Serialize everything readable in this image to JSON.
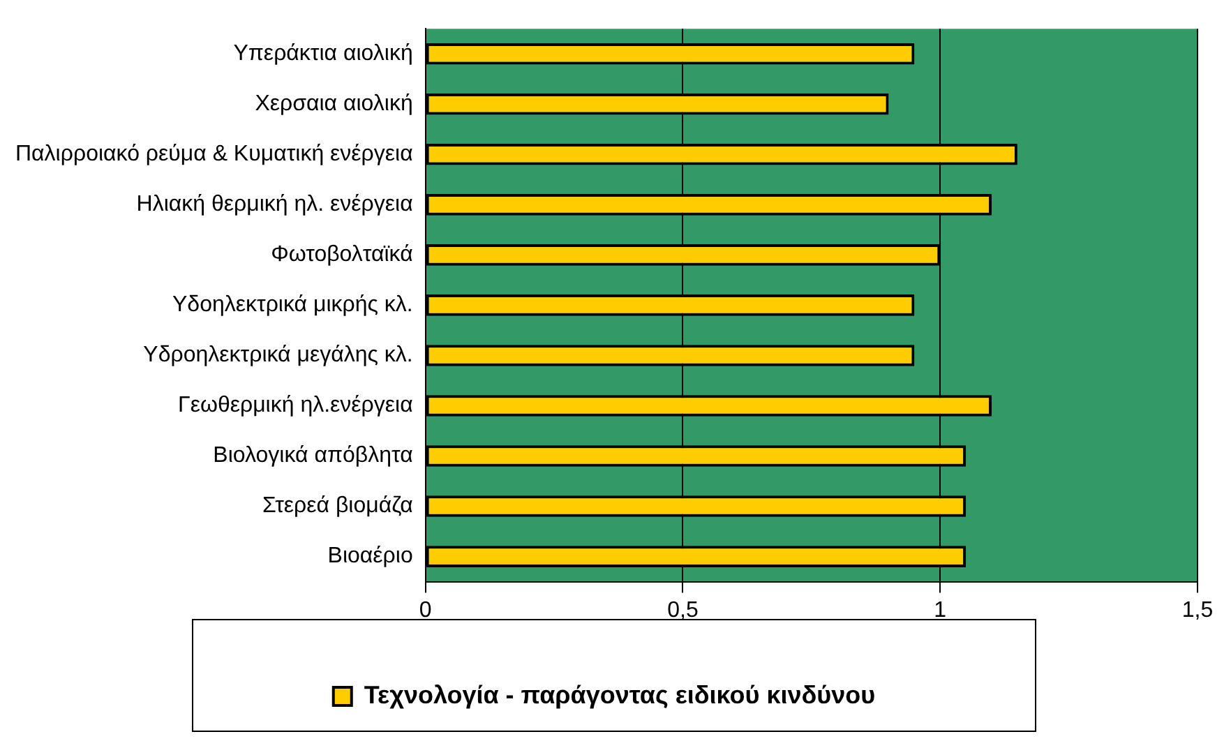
{
  "chart_data": {
    "type": "bar",
    "orientation": "horizontal",
    "categories": [
      "Υπεράκτια αιολική",
      "Χερσαια αιολική",
      "Παλιρροιακό ρεύμα & Κυματική ενέργεια",
      "Ηλιακή θερμική ηλ. ενέργεια",
      "Φωτοβολταϊκά",
      "Υδοηλεκτρικά μικρής κλ.",
      "Υδροηλεκτρικά μεγάλης κλ.",
      "Γεωθερμική ηλ.ενέργεια",
      "Βιολογικά απόβλητα",
      "Στερεά βιομάζα",
      "Βιοαέριο"
    ],
    "series": [
      {
        "name": "Τεχνολογία - παράγοντας ειδικού κινδύνου",
        "color": "#ffcc00",
        "values": [
          0.95,
          0.9,
          1.15,
          1.1,
          1,
          0.95,
          0.95,
          1.1,
          1.05,
          1.05,
          1.05
        ]
      }
    ],
    "xlim": [
      0,
      1.5
    ],
    "xticks": [
      0,
      {
        "value": 0.5,
        "label": "0,5"
      },
      1,
      {
        "value": 1.5,
        "label": "1,5"
      }
    ],
    "grid": "x",
    "legend": "bottom"
  }
}
